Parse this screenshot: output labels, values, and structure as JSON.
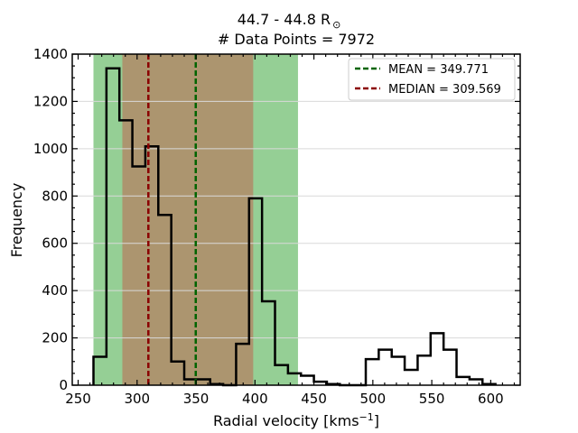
{
  "chart_data": {
    "type": "histogram",
    "title_line1": "44.7 - 44.8 R",
    "title_sun_symbol": "⊙",
    "title_line2": "# Data Points = 7972",
    "xlabel": "Radial velocity [kms",
    "xlabel_sup": "−1",
    "xlabel_close": "]",
    "ylabel": "Frequency",
    "xlim": [
      245,
      625
    ],
    "ylim": [
      0,
      1400
    ],
    "xticks": [
      250,
      300,
      350,
      400,
      450,
      500,
      550,
      600
    ],
    "yticks": [
      0,
      200,
      400,
      600,
      800,
      1000,
      1200,
      1400
    ],
    "grid": "horizontal",
    "legend_position": "top-right",
    "bin_edges": [
      263,
      274,
      285,
      296,
      307,
      318,
      329,
      340,
      351,
      362,
      373,
      384,
      395,
      406,
      417,
      428,
      439,
      450,
      461,
      472,
      483,
      494,
      505,
      516,
      527,
      538,
      549,
      560,
      571,
      582,
      593,
      604
    ],
    "counts": [
      120,
      1340,
      1120,
      925,
      1010,
      720,
      100,
      25,
      25,
      5,
      0,
      175,
      790,
      355,
      85,
      50,
      40,
      15,
      5,
      0,
      0,
      110,
      150,
      120,
      65,
      125,
      220,
      150,
      35,
      25,
      5
    ],
    "bands": [
      {
        "from": 263,
        "to": 436.5,
        "color": "#2ca02c",
        "opacity": 0.5
      },
      {
        "from": 287.5,
        "to": 398.5,
        "color": "#d62728",
        "opacity": 0.35
      }
    ],
    "lines": [
      {
        "x": 349.771,
        "label": "MEAN = 349.771",
        "color": "#006400"
      },
      {
        "x": 309.569,
        "label": "MEDIAN = 309.569",
        "color": "#8b0000"
      }
    ],
    "step_color": "#000000"
  }
}
